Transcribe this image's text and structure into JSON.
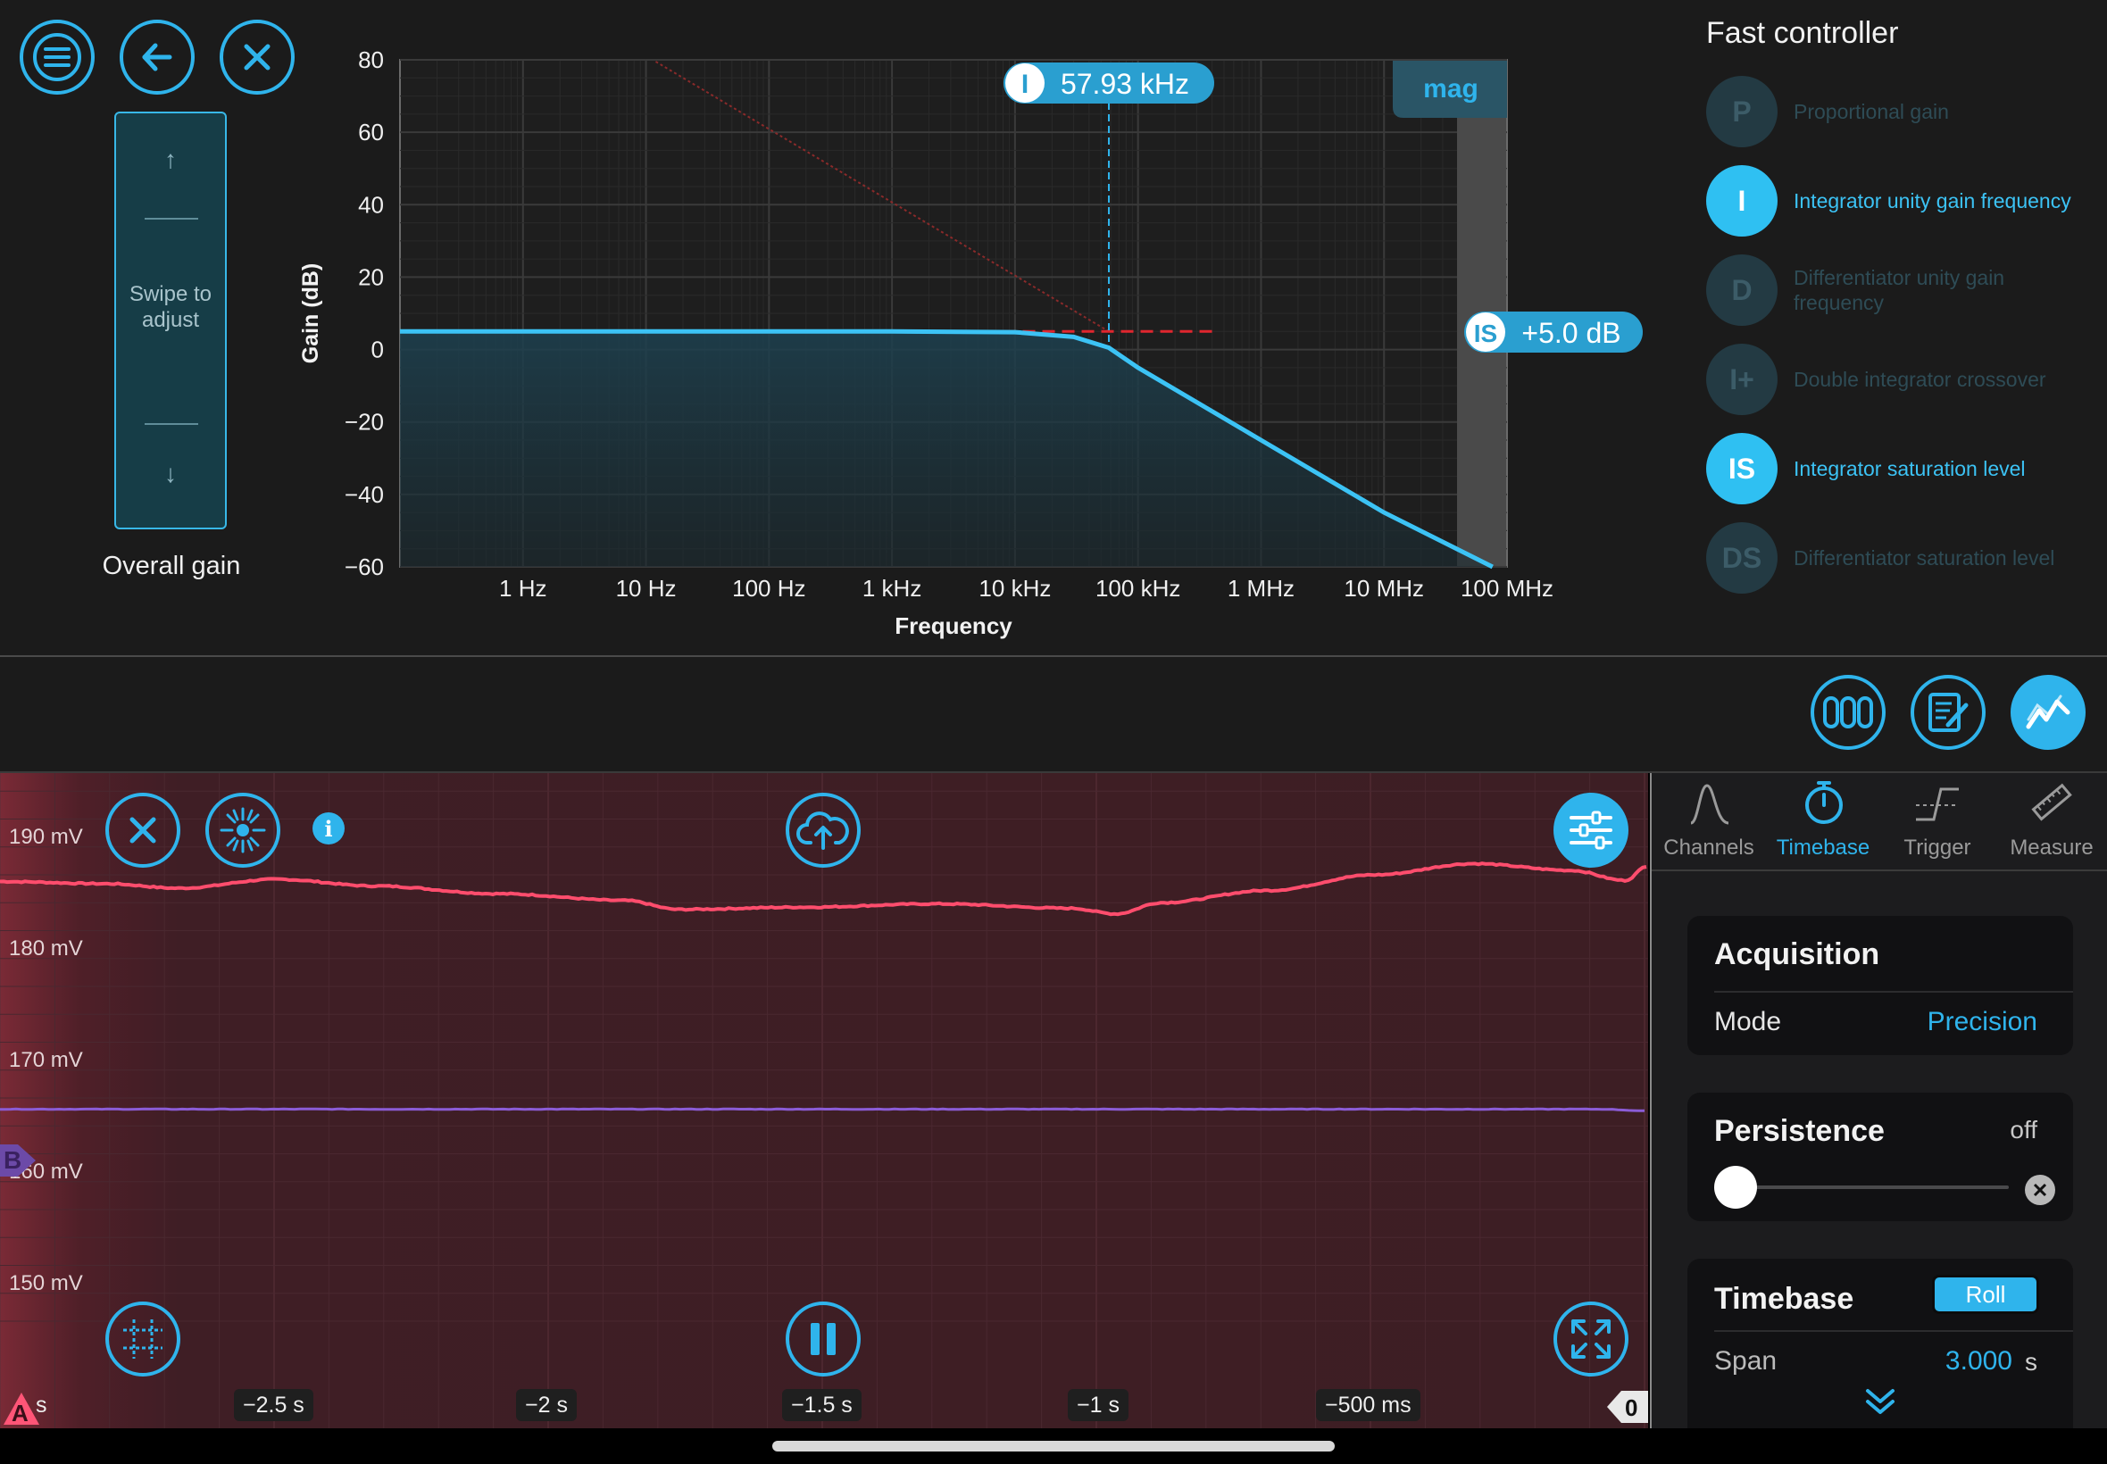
{
  "top_toolbar": {
    "menu_icon": "hamburger-menu-icon",
    "back_icon": "arrow-left-icon",
    "close_icon": "close-x-icon"
  },
  "gain_slider": {
    "hint": "Swipe to adjust",
    "up_arrow": "↑",
    "down_arrow": "↓",
    "label": "Overall gain"
  },
  "bode_plot": {
    "cursor_badge": "I",
    "cursor_value": "57.93 kHz",
    "mode_tab": "mag",
    "saturation_badge": "IS",
    "saturation_value": "+5.0 dB"
  },
  "chart_data": {
    "type": "line",
    "title": "",
    "xlabel": "Frequency",
    "ylabel": "Gain (dB)",
    "x_scale": "log",
    "x_ticks": [
      "1 Hz",
      "10 Hz",
      "100 Hz",
      "1 kHz",
      "10 kHz",
      "100 kHz",
      "1 MHz",
      "10 MHz",
      "100 MHz"
    ],
    "y_ticks": [
      "80",
      "60",
      "40",
      "20",
      "0",
      "−20",
      "−40",
      "−60"
    ],
    "ylim": [
      -60,
      80
    ],
    "grid": true,
    "series": [
      {
        "x_hz": [
          0.1,
          1,
          10,
          100,
          1000,
          10000,
          30000,
          57930,
          100000,
          1000000,
          10000000,
          100000000
        ],
        "y_db": [
          5,
          5,
          5,
          5,
          5,
          4.8,
          3.5,
          0.5,
          -5,
          -25,
          -45,
          -62
        ],
        "color": "#3cc3f5"
      }
    ],
    "annotations": [
      {
        "type": "vertical-cursor",
        "x_hz": 57930
      },
      {
        "type": "saturation-level",
        "y_db": 5.0
      },
      {
        "type": "integrator-asymptote",
        "slope_db_per_decade": -20
      }
    ]
  },
  "fast_controller": {
    "title": "Fast controller",
    "items": [
      {
        "badge": "P",
        "label": "Proportional gain",
        "active": false
      },
      {
        "badge": "I",
        "label": "Integrator unity gain frequency",
        "active": true
      },
      {
        "badge": "D",
        "label": "Differentiator unity gain frequency",
        "active": false
      },
      {
        "badge": "I+",
        "label": "Double integrator crossover",
        "active": false
      },
      {
        "badge": "IS",
        "label": "Integrator saturation level",
        "active": true
      },
      {
        "badge": "DS",
        "label": "Differentiator saturation level",
        "active": false
      }
    ]
  },
  "mid_toolbar": {
    "icons": [
      "registers-icon",
      "notes-edit-icon",
      "oscilloscope-chart-icon"
    ]
  },
  "scope": {
    "y_labels": [
      "190 mV",
      "180 mV",
      "170 mV",
      "160 mV",
      "150 mV"
    ],
    "t_labels": [
      "s",
      "−2.5 s",
      "−2 s",
      "−1.5 s",
      "−1 s",
      "−500 ms"
    ],
    "channel_a": "A",
    "channel_b": "B",
    "trigger_marker": "0",
    "channel_a_color": "#ff4d6d",
    "channel_b_color": "#8b5cd6",
    "info_icon": "info-icon"
  },
  "right_panel": {
    "tabs": [
      {
        "label": "Channels",
        "icon": "sine-wave-icon",
        "active": false
      },
      {
        "label": "Timebase",
        "icon": "stopwatch-icon",
        "active": true
      },
      {
        "label": "Trigger",
        "icon": "trigger-edge-icon",
        "active": false
      },
      {
        "label": "Measure",
        "icon": "ruler-icon",
        "active": false
      }
    ],
    "acquisition": {
      "title": "Acquisition",
      "mode_label": "Mode",
      "mode_value": "Precision"
    },
    "persistence": {
      "title": "Persistence",
      "value": "off",
      "level": 0
    },
    "timebase": {
      "title": "Timebase",
      "roll_button": "Roll",
      "span_label": "Span",
      "span_value": "3.000",
      "span_unit": "s"
    }
  }
}
